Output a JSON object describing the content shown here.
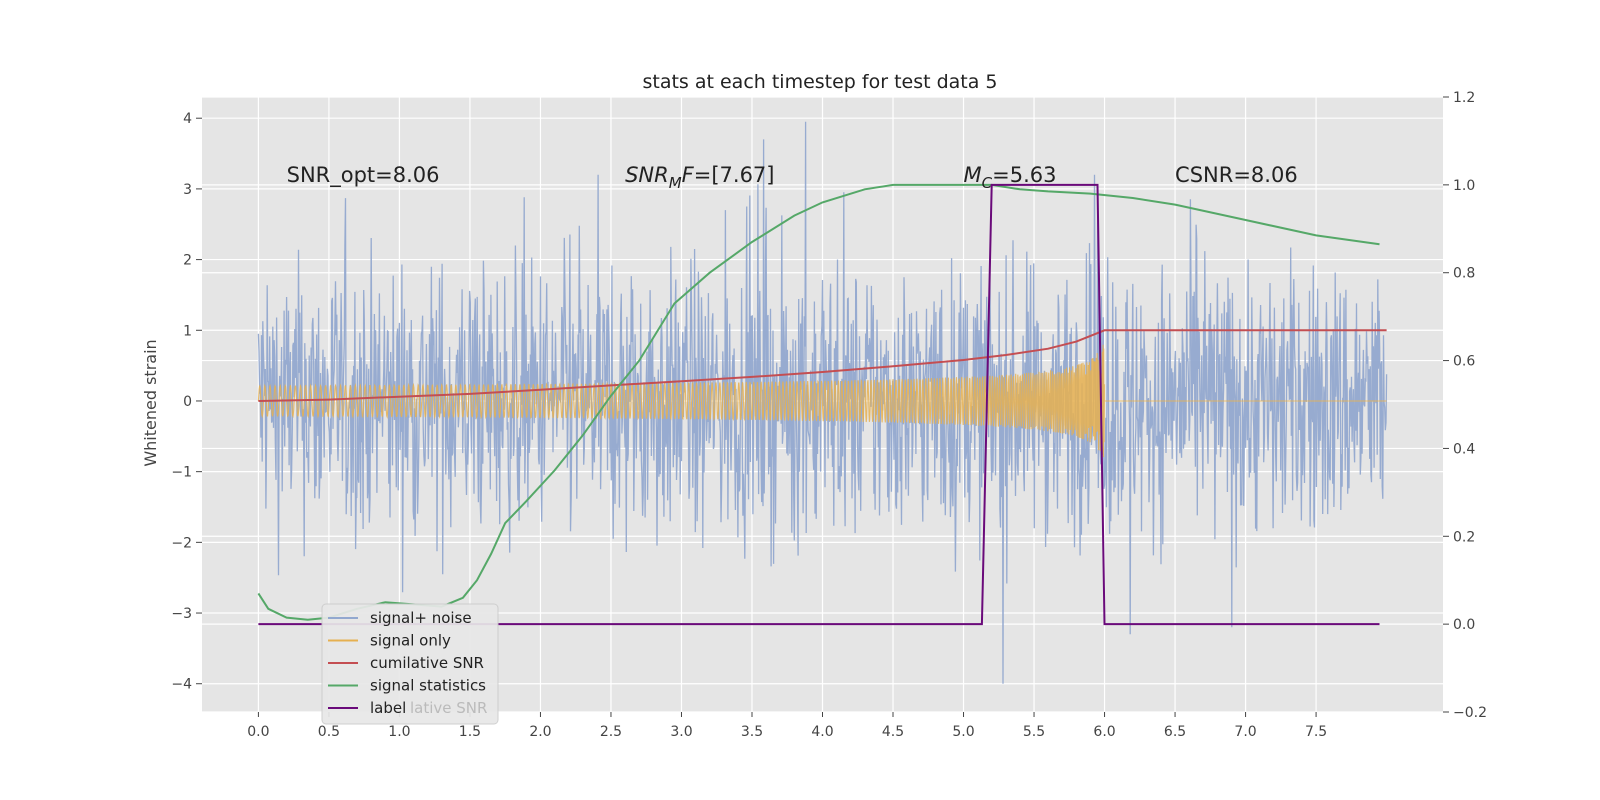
{
  "chart_data": {
    "type": "line",
    "title": "stats at each timestep for test data 5",
    "ylabel": "Whitened strain",
    "xlim": [
      -0.4,
      8.4
    ],
    "ylim": [
      -4.4,
      4.3
    ],
    "y2lim": [
      -0.2,
      1.2
    ],
    "grid": true,
    "legend_position": "lower-left",
    "x_ticks": [
      "0.0",
      "0.5",
      "1.0",
      "1.5",
      "2.0",
      "2.5",
      "3.0",
      "3.5",
      "4.0",
      "4.5",
      "5.0",
      "5.5",
      "6.0",
      "6.5",
      "7.0",
      "7.5"
    ],
    "y_ticks": [
      "4",
      "3",
      "2",
      "1",
      "0",
      "−1",
      "−2",
      "−3",
      "−4"
    ],
    "y2_ticks": [
      "1.2",
      "1.0",
      "0.8",
      "0.6",
      "0.4",
      "0.2",
      "0.0",
      "−0.2"
    ],
    "annotations": [
      {
        "text": "SNR_opt=8.06",
        "x": 0.2,
        "y": 3.1
      },
      {
        "text_main": "SNR",
        "text_sub": "M",
        "text_rest": "F=[7.67]",
        "x": 2.6,
        "y": 3.1
      },
      {
        "text_main": "M",
        "text_sub": "C",
        "text_rest": "=5.63",
        "x": 5.0,
        "y": 3.1
      },
      {
        "text": "CSNR=8.06",
        "x": 6.5,
        "y": 3.1
      }
    ],
    "series": [
      {
        "name": "signal+ noise",
        "color": "#92a8cf",
        "axis": "left",
        "x_range": [
          0.0,
          8.0
        ],
        "envelope": {
          "low": -2.2,
          "high": 2.3
        },
        "peaks": [
          [
            3.58,
            3.7
          ],
          [
            3.88,
            3.95
          ],
          [
            5.28,
            -4.0
          ],
          [
            5.93,
            3.2
          ],
          [
            6.18,
            -3.3
          ]
        ]
      },
      {
        "name": "signal only",
        "color": "#e6b050",
        "axis": "left",
        "x_range": [
          0.0,
          6.0
        ],
        "chirp_amplitude_end": 0.95,
        "after": 0.0
      },
      {
        "name": "cumilative SNR",
        "color": "#c44e52",
        "axis": "left",
        "x": [
          0.0,
          0.5,
          1.0,
          1.5,
          2.0,
          2.5,
          3.0,
          3.5,
          4.0,
          4.5,
          5.0,
          5.3,
          5.6,
          5.8,
          5.9,
          6.0,
          6.5,
          7.0,
          7.5,
          8.0
        ],
        "y": [
          0.0,
          0.02,
          0.06,
          0.1,
          0.16,
          0.22,
          0.28,
          0.34,
          0.41,
          0.49,
          0.58,
          0.65,
          0.74,
          0.84,
          0.92,
          1.0,
          1.0,
          1.0,
          1.0,
          1.0
        ]
      },
      {
        "name": "signal statistics",
        "color": "#55a868",
        "axis": "right",
        "x": [
          0.0,
          0.07,
          0.2,
          0.35,
          0.5,
          0.7,
          0.9,
          1.1,
          1.3,
          1.45,
          1.55,
          1.65,
          1.75,
          1.9,
          2.1,
          2.3,
          2.5,
          2.7,
          2.95,
          3.2,
          3.5,
          3.8,
          4.0,
          4.3,
          4.5,
          4.8,
          5.0,
          5.2,
          5.4,
          5.6,
          5.9,
          6.2,
          6.5,
          7.0,
          7.5,
          7.95
        ],
        "y": [
          0.07,
          0.035,
          0.015,
          0.01,
          0.015,
          0.035,
          0.05,
          0.045,
          0.04,
          0.06,
          0.1,
          0.16,
          0.23,
          0.28,
          0.35,
          0.43,
          0.52,
          0.6,
          0.73,
          0.8,
          0.87,
          0.93,
          0.96,
          0.99,
          1.0,
          1.0,
          1.0,
          1.0,
          0.99,
          0.985,
          0.98,
          0.97,
          0.955,
          0.92,
          0.885,
          0.865
        ]
      },
      {
        "name": "label",
        "color": "#6a0a7a",
        "axis": "right",
        "x": [
          0.0,
          5.13,
          5.2,
          5.95,
          6.0,
          7.95
        ],
        "y": [
          0.0,
          0.0,
          1.0,
          1.0,
          0.0,
          0.0
        ]
      }
    ],
    "legend": [
      {
        "label": "signal+ noise",
        "color": "#92a8cf"
      },
      {
        "label": "signal only",
        "color": "#e6b050"
      },
      {
        "label": "cumilative SNR",
        "color": "#c44e52"
      },
      {
        "label": "signal statistics",
        "color": "#55a868"
      },
      {
        "label": "label",
        "color": "#6a0a7a",
        "ghost": "lative SNR"
      }
    ],
    "colors": {
      "plot_background": "#e5e5e5",
      "grid": "#ffffff"
    }
  }
}
